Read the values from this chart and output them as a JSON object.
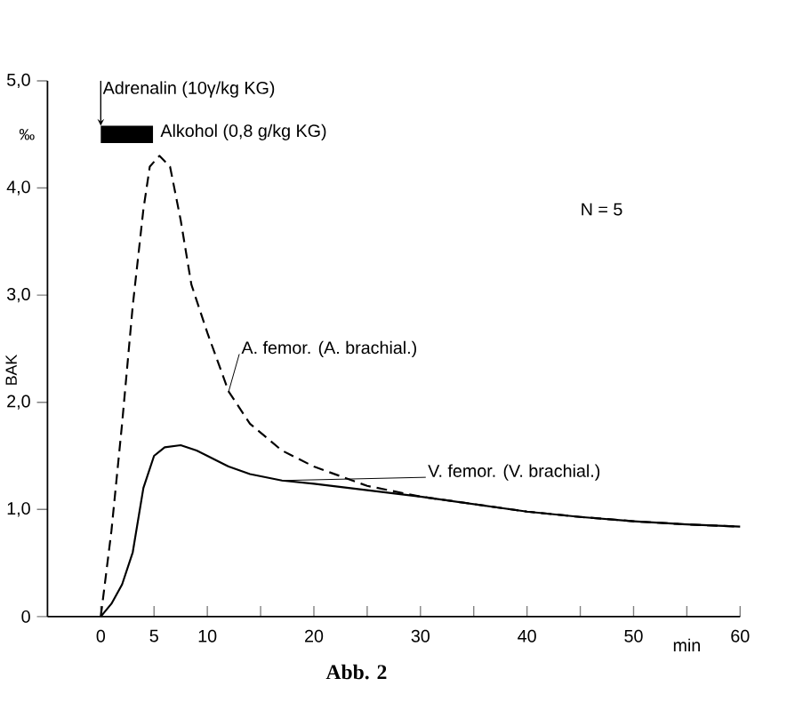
{
  "chart_data": {
    "type": "line",
    "xlabel": "min",
    "ylabel": "BAK",
    "x": [
      0,
      1,
      2,
      3,
      4,
      4.6,
      5.5,
      6.5,
      7.5,
      8.5,
      10,
      12,
      14,
      17,
      20,
      25,
      30,
      35,
      40,
      45,
      50,
      55,
      60
    ],
    "series": [
      {
        "name": "A. femor. (A. brachial.)",
        "color": "#000000",
        "line_style": "dashed",
        "values": [
          0,
          0.8,
          1.8,
          2.9,
          3.8,
          4.2,
          4.3,
          4.2,
          3.7,
          3.1,
          2.65,
          2.1,
          1.8,
          1.55,
          1.4,
          1.22,
          1.12,
          1.05,
          0.98,
          0.93,
          0.89,
          0.86,
          0.84
        ]
      },
      {
        "name": "V. femor. (V. brachial.)",
        "color": "#000000",
        "line_style": "solid",
        "x": [
          0,
          1,
          2,
          3,
          4,
          5,
          6,
          7.5,
          9,
          10,
          12,
          14,
          17,
          20,
          25,
          30,
          35,
          40,
          45,
          50,
          55,
          60
        ],
        "values": [
          0,
          0.12,
          0.3,
          0.6,
          1.2,
          1.5,
          1.58,
          1.6,
          1.55,
          1.5,
          1.4,
          1.33,
          1.27,
          1.24,
          1.18,
          1.12,
          1.05,
          0.98,
          0.93,
          0.89,
          0.86,
          0.84
        ]
      }
    ],
    "xlim": [
      -5,
      60
    ],
    "ylim": [
      0,
      5
    ],
    "xticks": [
      0,
      5,
      10,
      {
        "value": 15,
        "label": null
      },
      20,
      {
        "value": 25,
        "label": null
      },
      30,
      {
        "value": 35,
        "label": null
      },
      40,
      {
        "value": 45,
        "label": null
      },
      50,
      {
        "value": 55,
        "label": null
      },
      60
    ],
    "yticks": [
      0,
      {
        "value": 1,
        "label": "1,0"
      },
      {
        "value": 2,
        "label": "2,0"
      },
      {
        "value": 3,
        "label": "3,0"
      },
      {
        "value": 4,
        "label": "4,0"
      },
      {
        "value": 5,
        "label": "5,0"
      }
    ],
    "ref_lines": [
      {
        "axis": "x",
        "value": 0,
        "label": "Adrenalin (10γ/kg KG)"
      }
    ],
    "annotations": [
      "N = 5",
      "‰",
      "Abb. 2",
      "Alkohol (0,8 g/kg KG)"
    ],
    "grid": false,
    "legend": false
  }
}
